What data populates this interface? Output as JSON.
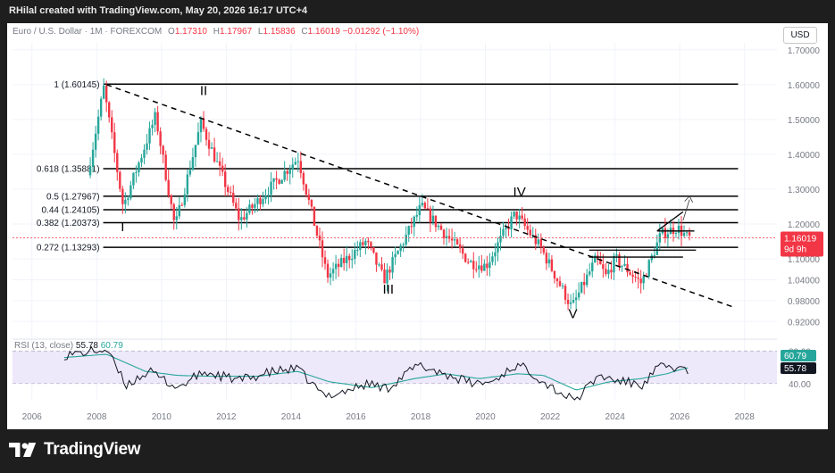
{
  "header": {
    "caption": "RHilal created with TradingView.com, May 20, 2026 16:17 UTC+4"
  },
  "legend": {
    "symbol": "Euro / U.S. Dollar · 1M · FOREXCOM",
    "open_key": "O",
    "open": "1.17310",
    "high_key": "H",
    "high": "1.17967",
    "low_key": "L",
    "low": "1.15836",
    "close_key": "C",
    "close": "1.16019",
    "change": "−0.01292 (−1.10%)"
  },
  "currency_button": "USD",
  "footer": {
    "brand": "TradingView"
  },
  "colors": {
    "up": "#26a69a",
    "down": "#f23645",
    "rsi": "#131722",
    "rsi_ma": "#26a69a",
    "rsi_band": "#ede8fa",
    "price_label": "#f23645",
    "grid": "#f0f3fa"
  },
  "chart_data": [
    {
      "type": "candlestick",
      "title": "Euro / U.S. Dollar",
      "timeframe": "1M",
      "x_ticks": [
        "2006",
        "2008",
        "2010",
        "2012",
        "2014",
        "2016",
        "2018",
        "2020",
        "2022",
        "2024",
        "2026",
        "2028"
      ],
      "y_ticks": [
        "1.70000",
        "1.60000",
        "1.50000",
        "1.40000",
        "1.30000",
        "1.20000",
        "1.10000",
        "1.04000",
        "0.98000",
        "0.92000"
      ],
      "ylim": [
        0.89,
        1.72
      ],
      "xlim": [
        2005.4,
        2029.0
      ],
      "last_price": {
        "value": "1.16019",
        "countdown": "9d 9h"
      },
      "anchors": [
        [
          2007.8,
          1.34
        ],
        [
          2008.3,
          1.59
        ],
        [
          2008.9,
          1.25
        ],
        [
          2009.9,
          1.51
        ],
        [
          2010.5,
          1.19
        ],
        [
          2011.3,
          1.49
        ],
        [
          2012.5,
          1.21
        ],
        [
          2014.3,
          1.39
        ],
        [
          2015.2,
          1.05
        ],
        [
          2016.4,
          1.15
        ],
        [
          2016.95,
          1.04
        ],
        [
          2018.1,
          1.25
        ],
        [
          2019.6,
          1.09
        ],
        [
          2020.1,
          1.08
        ],
        [
          2021.0,
          1.23
        ],
        [
          2021.8,
          1.13
        ],
        [
          2022.75,
          0.96
        ],
        [
          2023.5,
          1.1
        ],
        [
          2023.8,
          1.05
        ],
        [
          2024.1,
          1.1
        ],
        [
          2024.9,
          1.03
        ],
        [
          2025.5,
          1.17
        ],
        [
          2026.0,
          1.19
        ],
        [
          2026.33,
          1.16
        ]
      ],
      "fib_levels": [
        {
          "label": "1 (1.60145)",
          "value": 1.60145
        },
        {
          "label": "0.618 (1.35881)",
          "value": 1.35881
        },
        {
          "label": "0.5 (1.27967)",
          "value": 1.27967
        },
        {
          "label": "0.44 (1.24105)",
          "value": 1.24105
        },
        {
          "label": "0.382 (1.20373)",
          "value": 1.20373
        },
        {
          "label": "0.272 (1.13293)",
          "value": 1.13293
        }
      ],
      "fib_x_range": [
        2008.2,
        2027.8
      ],
      "trendline": {
        "x1": 2008.3,
        "y1": 1.6,
        "x2": 2027.7,
        "y2": 0.96
      },
      "wave_labels": [
        {
          "text": "I",
          "x": 2008.8,
          "y": 1.18
        },
        {
          "text": "II",
          "x": 2011.3,
          "y": 1.57
        },
        {
          "text": "III",
          "x": 2017.0,
          "y": 1.0
        },
        {
          "text": "IV",
          "x": 2021.05,
          "y": 1.28
        },
        {
          "text": "V",
          "x": 2022.7,
          "y": 0.93
        }
      ]
    },
    {
      "type": "line",
      "title": "RSI (13, close)",
      "legend_values": [
        "55.78",
        "60.79"
      ],
      "y_ticks": [
        "80.00",
        "40.00"
      ],
      "ylim": [
        20,
        88
      ],
      "band": [
        40,
        80
      ],
      "series": [
        {
          "name": "RSI",
          "anchors": [
            [
              2007.0,
              75
            ],
            [
              2007.6,
              78
            ],
            [
              2008.3,
              82
            ],
            [
              2008.9,
              38
            ],
            [
              2009.6,
              55
            ],
            [
              2010.5,
              35
            ],
            [
              2011.3,
              54
            ],
            [
              2012.4,
              44
            ],
            [
              2013.5,
              55
            ],
            [
              2014.2,
              58
            ],
            [
              2015.0,
              25
            ],
            [
              2015.6,
              30
            ],
            [
              2016.4,
              40
            ],
            [
              2016.95,
              34
            ],
            [
              2017.9,
              62
            ],
            [
              2018.3,
              58
            ],
            [
              2019.6,
              40
            ],
            [
              2020.2,
              42
            ],
            [
              2020.9,
              62
            ],
            [
              2021.3,
              58
            ],
            [
              2021.8,
              42
            ],
            [
              2022.75,
              18
            ],
            [
              2023.5,
              50
            ],
            [
              2024.0,
              44
            ],
            [
              2024.9,
              38
            ],
            [
              2025.3,
              59
            ],
            [
              2025.7,
              61
            ],
            [
              2026.0,
              58
            ],
            [
              2026.33,
              56
            ]
          ]
        },
        {
          "name": "RSI MA",
          "anchors": [
            [
              2007.0,
              72
            ],
            [
              2008.3,
              76
            ],
            [
              2009.5,
              55
            ],
            [
              2010.5,
              50
            ],
            [
              2011.5,
              49
            ],
            [
              2013.0,
              49
            ],
            [
              2014.2,
              55
            ],
            [
              2015.2,
              42
            ],
            [
              2016.5,
              35
            ],
            [
              2017.8,
              46
            ],
            [
              2018.8,
              52
            ],
            [
              2019.8,
              46
            ],
            [
              2021.0,
              52
            ],
            [
              2021.8,
              50
            ],
            [
              2022.8,
              32
            ],
            [
              2023.8,
              42
            ],
            [
              2024.8,
              46
            ],
            [
              2025.6,
              52
            ],
            [
              2026.0,
              57
            ],
            [
              2026.33,
              60
            ]
          ]
        }
      ]
    }
  ]
}
